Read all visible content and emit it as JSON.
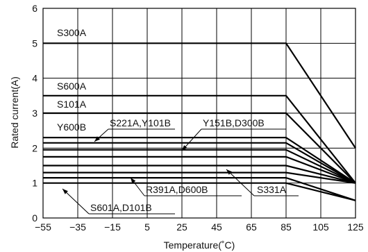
{
  "chart_data": {
    "type": "line",
    "xlabel": "Temperature(˚C)",
    "ylabel": "Rated current(A)",
    "xlim": [
      -55,
      125
    ],
    "ylim": [
      0,
      6
    ],
    "xticks": [
      -55,
      -35,
      -15,
      5,
      25,
      45,
      65,
      85,
      105,
      125
    ],
    "xtick_labels": [
      "−55",
      "−35",
      "−15",
      "5",
      "25",
      "45",
      "65",
      "85",
      "105",
      "125"
    ],
    "yticks": [
      0,
      1,
      2,
      3,
      4,
      5,
      6
    ],
    "grid": true,
    "series": [
      {
        "x": [
          -55,
          85,
          125
        ],
        "y": [
          5.0,
          5.0,
          2.0
        ]
      },
      {
        "x": [
          -55,
          85,
          125
        ],
        "y": [
          3.5,
          3.5,
          1.0
        ]
      },
      {
        "x": [
          -55,
          85,
          125
        ],
        "y": [
          3.0,
          3.0,
          1.0
        ]
      },
      {
        "x": [
          -55,
          85,
          125
        ],
        "y": [
          2.3,
          2.3,
          1.0
        ]
      },
      {
        "x": [
          -55,
          85,
          125
        ],
        "y": [
          2.15,
          2.15,
          1.0
        ]
      },
      {
        "x": [
          -55,
          85,
          125
        ],
        "y": [
          1.95,
          1.95,
          1.0
        ]
      },
      {
        "x": [
          -55,
          85,
          125
        ],
        "y": [
          1.75,
          1.75,
          1.0
        ]
      },
      {
        "x": [
          -55,
          85,
          125
        ],
        "y": [
          1.5,
          1.5,
          1.0
        ]
      },
      {
        "x": [
          -55,
          85,
          125
        ],
        "y": [
          1.3,
          1.3,
          1.0
        ]
      },
      {
        "x": [
          -55,
          85,
          125
        ],
        "y": [
          1.15,
          1.15,
          0.5
        ]
      },
      {
        "x": [
          -55,
          85,
          125
        ],
        "y": [
          1.0,
          1.0,
          0.5
        ]
      }
    ],
    "annotations": [
      {
        "text": "S300A"
      },
      {
        "text": "S600A"
      },
      {
        "text": "S101A"
      },
      {
        "text": "Y600B"
      },
      {
        "text": "S221A,Y101B"
      },
      {
        "text": "Y151B,D300B"
      },
      {
        "text": "R391A,D600B"
      },
      {
        "text": "S331A"
      },
      {
        "text": "S601A,D101B"
      }
    ]
  }
}
